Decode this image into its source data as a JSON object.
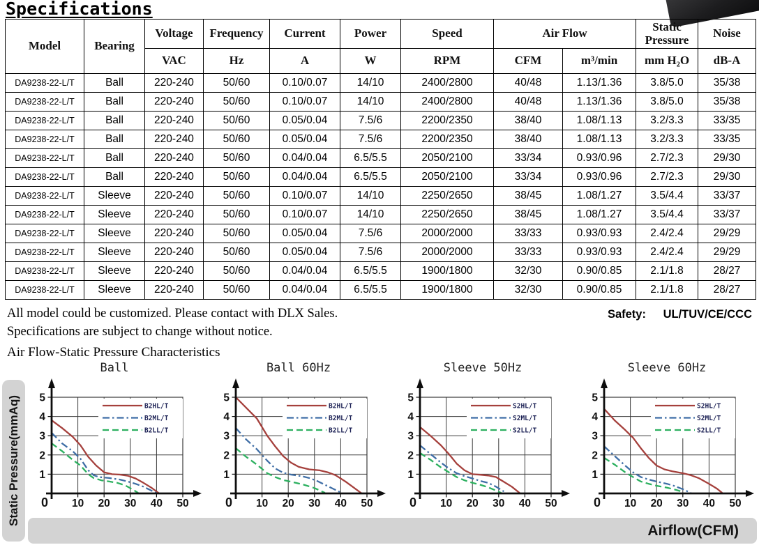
{
  "page": {
    "title": "Specifications"
  },
  "table": {
    "header": {
      "model": "Model",
      "bearing": "Bearing",
      "voltage": "Voltage",
      "voltage_unit": "VAC",
      "frequency": "Frequency",
      "frequency_unit": "Hz",
      "current": "Current",
      "current_unit": "A",
      "power": "Power",
      "power_unit": "W",
      "speed": "Speed",
      "speed_unit": "RPM",
      "airflow": "Air Flow",
      "airflow_unit_cfm": "CFM",
      "airflow_unit_m3": "m³/min",
      "static_pressure": "Static Pressure",
      "static_pressure_unit": "mm H₂O",
      "noise": "Noise",
      "noise_unit": "dB-A"
    },
    "rows": [
      [
        "DA9238-22-L/T",
        "Ball",
        "220-240",
        "50/60",
        "0.10/0.07",
        "14/10",
        "2400/2800",
        "40/48",
        "1.13/1.36",
        "3.8/5.0",
        "35/38"
      ],
      [
        "DA9238-22-L/T",
        "Ball",
        "220-240",
        "50/60",
        "0.10/0.07",
        "14/10",
        "2400/2800",
        "40/48",
        "1.13/1.36",
        "3.8/5.0",
        "35/38"
      ],
      [
        "DA9238-22-L/T",
        "Ball",
        "220-240",
        "50/60",
        "0.05/0.04",
        "7.5/6",
        "2200/2350",
        "38/40",
        "1.08/1.13",
        "3.2/3.3",
        "33/35"
      ],
      [
        "DA9238-22-L/T",
        "Ball",
        "220-240",
        "50/60",
        "0.05/0.04",
        "7.5/6",
        "2200/2350",
        "38/40",
        "1.08/1.13",
        "3.2/3.3",
        "33/35"
      ],
      [
        "DA9238-22-L/T",
        "Ball",
        "220-240",
        "50/60",
        "0.04/0.04",
        "6.5/5.5",
        "2050/2100",
        "33/34",
        "0.93/0.96",
        "2.7/2.3",
        "29/30"
      ],
      [
        "DA9238-22-L/T",
        "Ball",
        "220-240",
        "50/60",
        "0.04/0.04",
        "6.5/5.5",
        "2050/2100",
        "33/34",
        "0.93/0.96",
        "2.7/2.3",
        "29/30"
      ],
      [
        "DA9238-22-L/T",
        "Sleeve",
        "220-240",
        "50/60",
        "0.10/0.07",
        "14/10",
        "2250/2650",
        "38/45",
        "1.08/1.27",
        "3.5/4.4",
        "33/37"
      ],
      [
        "DA9238-22-L/T",
        "Sleeve",
        "220-240",
        "50/60",
        "0.10/0.07",
        "14/10",
        "2250/2650",
        "38/45",
        "1.08/1.27",
        "3.5/4.4",
        "33/37"
      ],
      [
        "DA9238-22-L/T",
        "Sleeve",
        "220-240",
        "50/60",
        "0.05/0.04",
        "7.5/6",
        "2000/2000",
        "33/33",
        "0.93/0.93",
        "2.4/2.4",
        "29/29"
      ],
      [
        "DA9238-22-L/T",
        "Sleeve",
        "220-240",
        "50/60",
        "0.05/0.04",
        "7.5/6",
        "2000/2000",
        "33/33",
        "0.93/0.93",
        "2.4/2.4",
        "29/29"
      ],
      [
        "DA9238-22-L/T",
        "Sleeve",
        "220-240",
        "50/60",
        "0.04/0.04",
        "6.5/5.5",
        "1900/1800",
        "32/30",
        "0.90/0.85",
        "2.1/1.8",
        "28/27"
      ],
      [
        "DA9238-22-L/T",
        "Sleeve",
        "220-240",
        "50/60",
        "0.04/0.04",
        "6.5/5.5",
        "1900/1800",
        "32/30",
        "0.90/0.85",
        "2.1/1.8",
        "28/27"
      ]
    ]
  },
  "notes": {
    "line1": "All model could be customized. Please contact with DLX Sales.",
    "line2": "Specifications are subject to change without notice.",
    "safety_label": "Safety:",
    "safety_value": "UL/TUV/CE/CCC"
  },
  "section": {
    "title": "Air Flow-Static Pressure Characteristics",
    "y_axis_label": "Static Pressure(mmAq)",
    "x_axis_label": "Airflow(CFM)"
  },
  "chart_data": [
    {
      "type": "line",
      "title": "Ball",
      "xlabel": "Airflow(CFM)",
      "ylabel": "Static Pressure(mmAq)",
      "xlim": [
        0,
        50
      ],
      "ylim": [
        0,
        5
      ],
      "x_ticks": [
        0,
        10,
        20,
        30,
        40,
        50
      ],
      "y_ticks": [
        0,
        1,
        2,
        3,
        4,
        5
      ],
      "grid": true,
      "legend_position": "top-right",
      "series": [
        {
          "name": "B2HL/T",
          "color": "#a5403c",
          "style": "solid",
          "points": [
            [
              0,
              3.8
            ],
            [
              4,
              3.4
            ],
            [
              8,
              2.95
            ],
            [
              11,
              2.5
            ],
            [
              14,
              1.9
            ],
            [
              17,
              1.45
            ],
            [
              20,
              1.1
            ],
            [
              23,
              1.0
            ],
            [
              26,
              0.98
            ],
            [
              29,
              0.92
            ],
            [
              32,
              0.78
            ],
            [
              35,
              0.55
            ],
            [
              38,
              0.3
            ],
            [
              41,
              0
            ]
          ]
        },
        {
          "name": "B2ML/T",
          "color": "#3f6ea6",
          "style": "dashdot",
          "points": [
            [
              0,
              3.15
            ],
            [
              4,
              2.6
            ],
            [
              8,
              2.2
            ],
            [
              11,
              1.8
            ],
            [
              14,
              1.2
            ],
            [
              16,
              0.95
            ],
            [
              18,
              0.85
            ],
            [
              22,
              0.8
            ],
            [
              26,
              0.72
            ],
            [
              29,
              0.62
            ],
            [
              32,
              0.5
            ],
            [
              35,
              0.35
            ],
            [
              38,
              0.15
            ],
            [
              40,
              0.02
            ]
          ]
        },
        {
          "name": "B2LL/T",
          "color": "#2cb05f",
          "style": "dashed",
          "points": [
            [
              0,
              2.6
            ],
            [
              4,
              2.2
            ],
            [
              8,
              1.75
            ],
            [
              11,
              1.45
            ],
            [
              14,
              1.0
            ],
            [
              16,
              0.8
            ],
            [
              19,
              0.68
            ],
            [
              22,
              0.62
            ],
            [
              25,
              0.55
            ],
            [
              28,
              0.42
            ],
            [
              31,
              0.2
            ],
            [
              33,
              0.02
            ]
          ]
        }
      ]
    },
    {
      "type": "line",
      "title": "Ball 60Hz",
      "xlabel": "Airflow(CFM)",
      "ylabel": "Static Pressure(mmAq)",
      "xlim": [
        0,
        50
      ],
      "ylim": [
        0,
        5
      ],
      "x_ticks": [
        0,
        10,
        20,
        30,
        40,
        50
      ],
      "y_ticks": [
        0,
        1,
        2,
        3,
        4,
        5
      ],
      "grid": true,
      "legend_position": "top-right",
      "series": [
        {
          "name": "B2HL/T",
          "color": "#a5403c",
          "style": "solid",
          "points": [
            [
              0,
              5.0
            ],
            [
              4,
              4.45
            ],
            [
              8,
              3.9
            ],
            [
              12,
              3.0
            ],
            [
              15,
              2.45
            ],
            [
              18,
              1.95
            ],
            [
              21,
              1.6
            ],
            [
              24,
              1.38
            ],
            [
              28,
              1.25
            ],
            [
              32,
              1.2
            ],
            [
              35,
              1.1
            ],
            [
              38,
              0.95
            ],
            [
              42,
              0.6
            ],
            [
              45,
              0.3
            ],
            [
              48,
              0
            ]
          ]
        },
        {
          "name": "B2ML/T",
          "color": "#3f6ea6",
          "style": "dashdot",
          "points": [
            [
              0,
              3.4
            ],
            [
              4,
              2.8
            ],
            [
              8,
              2.3
            ],
            [
              12,
              1.7
            ],
            [
              15,
              1.3
            ],
            [
              18,
              1.08
            ],
            [
              21,
              0.98
            ],
            [
              25,
              0.9
            ],
            [
              28,
              0.8
            ],
            [
              31,
              0.65
            ],
            [
              34,
              0.45
            ],
            [
              37,
              0.25
            ],
            [
              40,
              0.05
            ]
          ]
        },
        {
          "name": "B2LL/T",
          "color": "#2cb05f",
          "style": "dashed",
          "points": [
            [
              0,
              2.35
            ],
            [
              4,
              1.9
            ],
            [
              8,
              1.5
            ],
            [
              12,
              1.05
            ],
            [
              15,
              0.85
            ],
            [
              18,
              0.7
            ],
            [
              22,
              0.58
            ],
            [
              26,
              0.45
            ],
            [
              30,
              0.28
            ],
            [
              34,
              0.03
            ]
          ]
        }
      ]
    },
    {
      "type": "line",
      "title": "Sleeve 50Hz",
      "xlabel": "Airflow(CFM)",
      "ylabel": "Static Pressure(mmAq)",
      "xlim": [
        0,
        50
      ],
      "ylim": [
        0,
        5
      ],
      "x_ticks": [
        0,
        10,
        20,
        30,
        40,
        50
      ],
      "y_ticks": [
        0,
        1,
        2,
        3,
        4,
        5
      ],
      "grid": true,
      "legend_position": "top-right",
      "series": [
        {
          "name": "S2HL/T",
          "color": "#a5403c",
          "style": "solid",
          "points": [
            [
              0,
              3.45
            ],
            [
              4,
              3.0
            ],
            [
              8,
              2.5
            ],
            [
              11,
              2.05
            ],
            [
              14,
              1.55
            ],
            [
              17,
              1.2
            ],
            [
              20,
              1.0
            ],
            [
              23,
              0.97
            ],
            [
              26,
              0.93
            ],
            [
              29,
              0.85
            ],
            [
              32,
              0.6
            ],
            [
              35,
              0.35
            ],
            [
              38,
              0.02
            ]
          ]
        },
        {
          "name": "S2ML/T",
          "color": "#3f6ea6",
          "style": "dashdot",
          "points": [
            [
              0,
              2.5
            ],
            [
              4,
              2.05
            ],
            [
              8,
              1.6
            ],
            [
              11,
              1.3
            ],
            [
              14,
              1.05
            ],
            [
              17,
              0.9
            ],
            [
              20,
              0.78
            ],
            [
              23,
              0.65
            ],
            [
              26,
              0.55
            ],
            [
              29,
              0.35
            ],
            [
              32,
              0.1
            ]
          ]
        },
        {
          "name": "S2LL/T",
          "color": "#2cb05f",
          "style": "dashed",
          "points": [
            [
              0,
              2.1
            ],
            [
              4,
              1.75
            ],
            [
              8,
              1.35
            ],
            [
              11,
              1.1
            ],
            [
              14,
              0.85
            ],
            [
              17,
              0.68
            ],
            [
              20,
              0.55
            ],
            [
              23,
              0.45
            ],
            [
              26,
              0.32
            ],
            [
              29,
              0.15
            ],
            [
              31,
              0.02
            ]
          ]
        }
      ]
    },
    {
      "type": "line",
      "title": "Sleeve 60Hz",
      "xlabel": "Airflow(CFM)",
      "ylabel": "Static Pressure(mmAq)",
      "xlim": [
        0,
        50
      ],
      "ylim": [
        0,
        5
      ],
      "x_ticks": [
        0,
        10,
        20,
        30,
        40,
        50
      ],
      "y_ticks": [
        0,
        1,
        2,
        3,
        4,
        5
      ],
      "grid": true,
      "legend_position": "top-right",
      "series": [
        {
          "name": "S2HL/T",
          "color": "#a5403c",
          "style": "solid",
          "points": [
            [
              0,
              4.4
            ],
            [
              4,
              3.8
            ],
            [
              8,
              3.3
            ],
            [
              11,
              2.9
            ],
            [
              14,
              2.35
            ],
            [
              17,
              1.85
            ],
            [
              20,
              1.45
            ],
            [
              23,
              1.25
            ],
            [
              26,
              1.15
            ],
            [
              30,
              1.05
            ],
            [
              33,
              0.95
            ],
            [
              36,
              0.8
            ],
            [
              40,
              0.5
            ],
            [
              43,
              0.25
            ],
            [
              45,
              0.03
            ]
          ]
        },
        {
          "name": "S2ML/T",
          "color": "#3f6ea6",
          "style": "dashdot",
          "points": [
            [
              0,
              2.45
            ],
            [
              4,
              1.95
            ],
            [
              8,
              1.45
            ],
            [
              11,
              1.1
            ],
            [
              14,
              0.85
            ],
            [
              17,
              0.72
            ],
            [
              20,
              0.62
            ],
            [
              24,
              0.5
            ],
            [
              27,
              0.38
            ],
            [
              30,
              0.22
            ],
            [
              33,
              0.03
            ]
          ]
        },
        {
          "name": "S2LL/T",
          "color": "#2cb05f",
          "style": "dashed",
          "points": [
            [
              0,
              1.85
            ],
            [
              4,
              1.5
            ],
            [
              8,
              1.1
            ],
            [
              11,
              0.85
            ],
            [
              14,
              0.62
            ],
            [
              17,
              0.5
            ],
            [
              20,
              0.4
            ],
            [
              24,
              0.3
            ],
            [
              27,
              0.2
            ],
            [
              30,
              0.08
            ]
          ]
        }
      ]
    }
  ],
  "style": {
    "grid_color": "#3a3a3a",
    "axis_color": "#0d0d0d",
    "legend_text_color": "#1b2054",
    "band_color": "#d3d3d3"
  }
}
